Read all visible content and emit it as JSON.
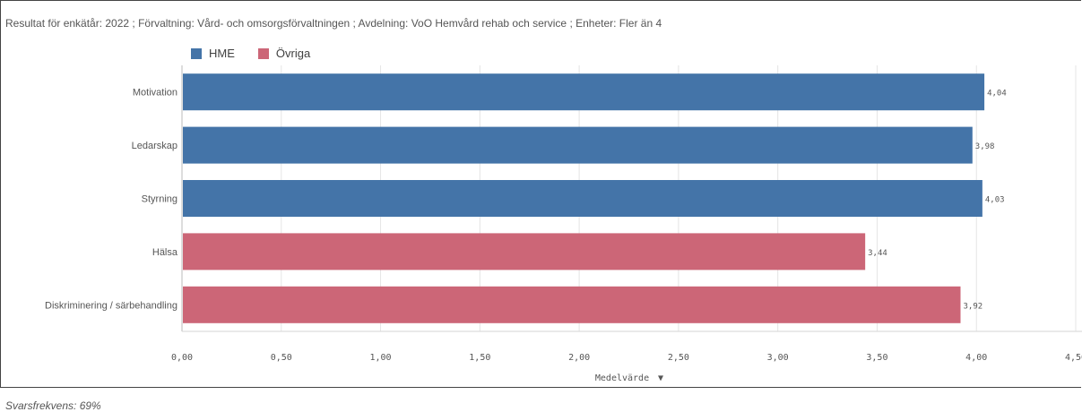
{
  "header": {
    "text": "Resultat för enkätår: 2022 ; Förvaltning: Vård- och omsorgsförvaltningen ; Avdelning: VoO Hemvård rehab och service ; Enheter: Fler än 4"
  },
  "footer": {
    "text": "Svarsfrekvens: 69%"
  },
  "legend": [
    {
      "label": "HME",
      "color": "#4474a8"
    },
    {
      "label": "Övriga",
      "color": "#cc6677"
    }
  ],
  "chart_data": {
    "type": "bar",
    "orientation": "horizontal",
    "categories": [
      "Motivation",
      "Ledarskap",
      "Styrning",
      "Hälsa",
      "Diskriminering / särbehandling"
    ],
    "values": [
      4.04,
      3.98,
      4.03,
      3.44,
      3.92
    ],
    "value_labels": [
      "4,04",
      "3,98",
      "4,03",
      "3,44",
      "3,92"
    ],
    "groups": [
      "HME",
      "HME",
      "HME",
      "Övriga",
      "Övriga"
    ],
    "colors": {
      "HME": "#4474a8",
      "Övriga": "#cc6677"
    },
    "xlim": [
      0,
      4.5
    ],
    "ticks": [
      0,
      0.5,
      1,
      1.5,
      2,
      2.5,
      3,
      3.5,
      4,
      4.5
    ],
    "tick_labels": [
      "0,00",
      "0,50",
      "1,00",
      "1,50",
      "2,00",
      "2,50",
      "3,00",
      "3,50",
      "4,00",
      "4,50"
    ],
    "xlabel": "Medelvärde",
    "xlabel_sort_glyph": "▼",
    "grid": true,
    "legend_position": "top-left"
  }
}
